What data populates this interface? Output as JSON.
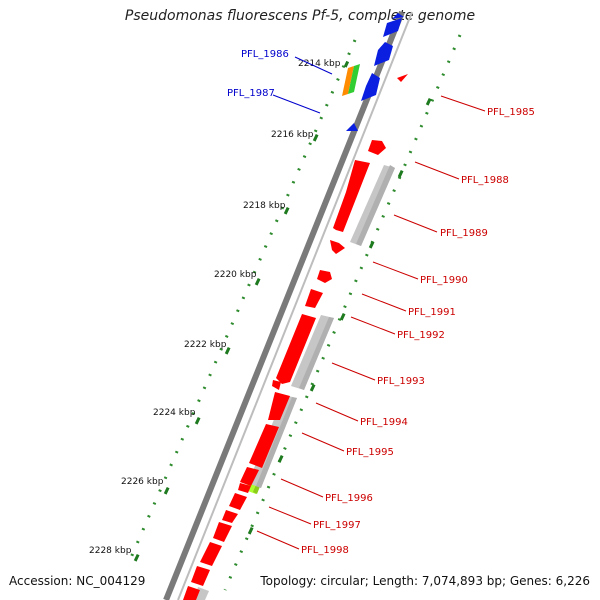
{
  "title": "Pseudomonas fluorescens Pf-5, complete genome",
  "footer": {
    "accession": "Accession: NC_004129",
    "summary": "Topology: circular; Length: 7,074,893 bp; Genes: 6,226"
  },
  "ruler": {
    "tick_labels": [
      "2214 kbp",
      "2216 kbp",
      "2218 kbp",
      "2220 kbp",
      "2222 kbp",
      "2224 kbp",
      "2226 kbp",
      "2228 kbp"
    ]
  },
  "gene_labels": {
    "left": [
      "PFL_1986",
      "PFL_1987"
    ],
    "right": [
      "PFL_1985",
      "PFL_1988",
      "PFL_1989",
      "PFL_1990",
      "PFL_1991",
      "PFL_1992",
      "PFL_1993",
      "PFL_1994",
      "PFL_1995",
      "PFL_1996",
      "PFL_1997",
      "PFL_1998"
    ]
  },
  "colors": {
    "backbone": "#7a7a7a",
    "cds": "#ff0000",
    "cds_left": "#0000ee",
    "label_right": "#cc0000",
    "label_left": "#0000cc",
    "ruler_ticks": "#228b22",
    "homolog_bar": "#c0c0c0",
    "highlight_orange": "#ff8c00",
    "highlight_green": "#32cd32",
    "highlight_lime": "#adff2f"
  }
}
